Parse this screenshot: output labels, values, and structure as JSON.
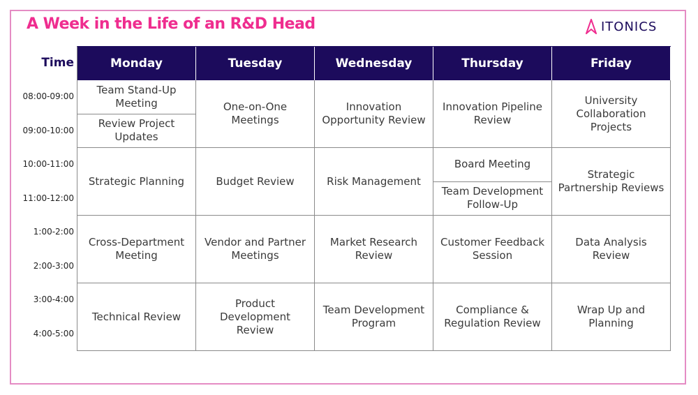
{
  "title": "A Week in the Life of an R&D Head",
  "logo": {
    "text": "ITONICS"
  },
  "colors": {
    "accent": "#ef2d8f",
    "header_bg": "#1c0b5c",
    "frame": "#e58cc4"
  },
  "time_header": "Time",
  "time_slots": [
    "08:00-09:00",
    "09:00-10:00",
    "10:00-11:00",
    "11:00-12:00",
    "1:00-2:00",
    "2:00-3:00",
    "3:00-4:00",
    "4:00-5:00"
  ],
  "days": [
    "Monday",
    "Tuesday",
    "Wednesday",
    "Thursday",
    "Friday"
  ],
  "schedule": {
    "monday": [
      "Team Stand-Up Meeting",
      "Review Project Updates",
      "Strategic Planning",
      "Cross-Department Meeting",
      "Technical Review"
    ],
    "tuesday": [
      "One-on-One Meetings",
      "Budget Review",
      "Vendor and Partner Meetings",
      "Product Development Review"
    ],
    "wednesday": [
      "Innovation Opportunity Review",
      "Risk Management",
      "Market Research Review",
      "Team Development Program"
    ],
    "thursday": [
      "Innovation Pipeline Review",
      "Board Meeting",
      "Team Development Follow-Up",
      "Customer Feedback Session",
      "Compliance & Regulation Review"
    ],
    "friday": [
      "University Collaboration Projects",
      "Strategic Partnership Reviews",
      "Data Analysis Review",
      "Wrap Up and Planning"
    ]
  }
}
